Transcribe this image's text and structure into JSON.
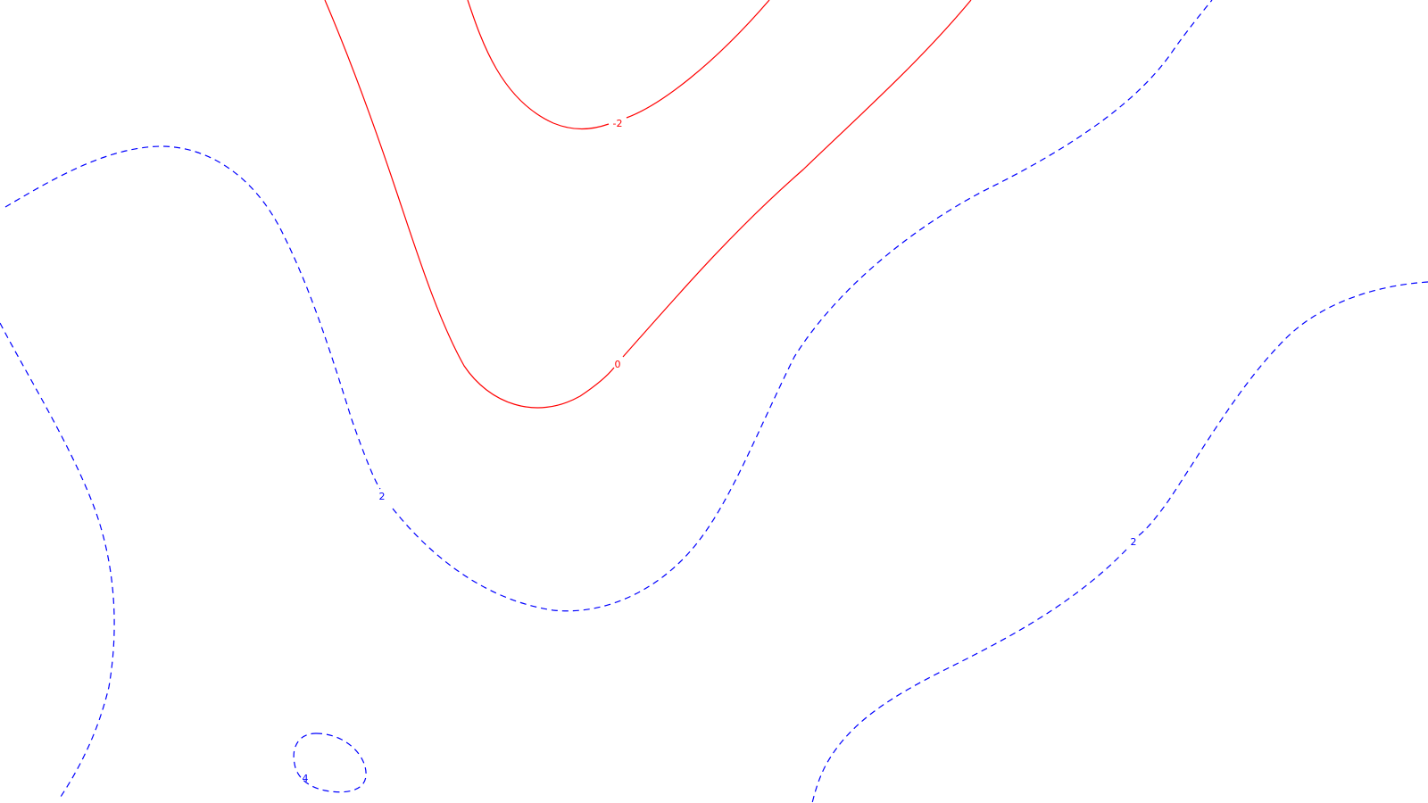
{
  "map": {
    "colors": {
      "background": "#ffffff",
      "negative_contour": "#ff0000",
      "positive_contour": "#0000ff"
    },
    "contours": [
      {
        "id": "contour-neg2",
        "level": -2,
        "label": "-2",
        "color": "#ff0000",
        "style": "solid"
      },
      {
        "id": "contour-0",
        "level": 0,
        "label": "0",
        "color": "#ff0000",
        "style": "solid"
      },
      {
        "id": "contour-2-center",
        "level": 2,
        "label": "2",
        "color": "#0000ff",
        "style": "dashed"
      },
      {
        "id": "contour-2-right",
        "level": 2,
        "label": "2",
        "color": "#0000ff",
        "style": "dashed"
      },
      {
        "id": "contour-left-edge",
        "level": 4,
        "label": "",
        "color": "#0000ff",
        "style": "dashed"
      },
      {
        "id": "contour-4-loop",
        "level": 4,
        "label": "4",
        "color": "#0000ff",
        "style": "dashed"
      }
    ]
  }
}
